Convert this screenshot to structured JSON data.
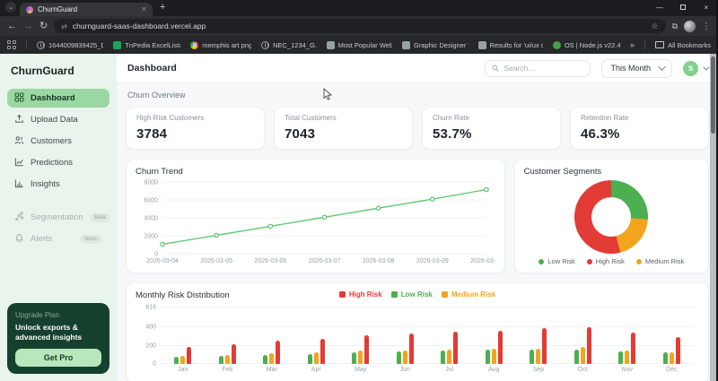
{
  "browser": {
    "tab_title": "ChurnGuard",
    "url": "churnguard-saas-dashboard.vercel.app",
    "bookmarks": [
      {
        "label": "1644009839425_Do...",
        "icon": "globe"
      },
      {
        "label": "TnPedia ExcelLista -...",
        "icon": "sheet"
      },
      {
        "label": "memphis art png -...",
        "icon": "chrome"
      },
      {
        "label": "NEC_1234_G.pdf",
        "icon": "globe"
      },
      {
        "label": "Most Popular Websi...",
        "icon": "page"
      },
      {
        "label": "Graphic Designer W...",
        "icon": "page"
      },
      {
        "label": "Results for 'ui/ux de...",
        "icon": "page"
      },
      {
        "label": "OS | Node.js v22.4.1...",
        "icon": "node"
      }
    ],
    "all_bookmarks_label": "All Bookmarks"
  },
  "sidebar": {
    "brand": "ChurnGuard",
    "items": [
      {
        "label": "Dashboard",
        "icon": "grid",
        "active": true
      },
      {
        "label": "Upload Data",
        "icon": "upload",
        "active": false
      },
      {
        "label": "Customers",
        "icon": "users",
        "active": false
      },
      {
        "label": "Predictions",
        "icon": "trend",
        "active": false
      },
      {
        "label": "Insights",
        "icon": "bars",
        "active": false
      }
    ],
    "secondary_items": [
      {
        "label": "Segmentation",
        "icon": "scatter",
        "badge": "Beta"
      },
      {
        "label": "Alerts",
        "icon": "bell",
        "badge": "Soon"
      }
    ],
    "upgrade": {
      "title": "Upgrade Plan",
      "description": "Unlock exports & advanced insights",
      "cta": "Get Pro"
    }
  },
  "topbar": {
    "title": "Dashboard",
    "search_placeholder": "Search...",
    "period_selector": "This Month",
    "avatar_initial": "S"
  },
  "overview": {
    "section_title": "Churn Overview",
    "cards": [
      {
        "label": "High Risk Customers",
        "value": "3784"
      },
      {
        "label": "Total Customers",
        "value": "7043"
      },
      {
        "label": "Churn Rate",
        "value": "53.7%"
      },
      {
        "label": "Retention Rate",
        "value": "46.3%"
      }
    ]
  },
  "colors": {
    "accent_green": "#2f7d4f",
    "sidebar_active_bg": "#9bd7a3",
    "upgrade_card_bg": "#16402e",
    "high_risk": "#e33b36",
    "low_risk": "#4caf50",
    "medium_risk": "#f2a41f",
    "line_green": "#5cc46a"
  },
  "chart_data": [
    {
      "type": "line",
      "title": "Churn Trend",
      "x": [
        "2026-03-04",
        "2026-03-05",
        "2026-03-06",
        "2026-03-07",
        "2026-03-08",
        "2026-03-09",
        "2026-03-10"
      ],
      "series": [
        {
          "name": "Churn",
          "values": [
            1050,
            2050,
            3060,
            4070,
            5080,
            6090,
            7150
          ]
        }
      ],
      "ylim": [
        0,
        8000
      ],
      "yticks": [
        0,
        2000,
        4000,
        6000,
        8000
      ],
      "color": "#5cc46a",
      "grid": true
    },
    {
      "type": "pie",
      "title": "Customer Segments",
      "donut": true,
      "segments": [
        {
          "label": "Low Risk",
          "value": 26,
          "color": "#4caf50"
        },
        {
          "label": "Medium Risk",
          "value": 20,
          "color": "#f2a41f"
        },
        {
          "label": "High Risk",
          "value": 54,
          "color": "#e33b36"
        }
      ],
      "legend_order": [
        "Low Risk",
        "High Risk",
        "Medium Risk"
      ],
      "legend_position": "bottom"
    },
    {
      "type": "bar",
      "title": "Monthly Risk Distribution",
      "categories": [
        "Jan",
        "Feb",
        "Mar",
        "Apr",
        "May",
        "Jun",
        "Jul",
        "Aug",
        "Sep",
        "Oct",
        "Nov",
        "Dec"
      ],
      "series": [
        {
          "name": "High Risk",
          "color": "#e33b36",
          "values": [
            190,
            215,
            250,
            275,
            310,
            335,
            350,
            365,
            390,
            400,
            340,
            295
          ]
        },
        {
          "name": "Low Risk",
          "color": "#4caf50",
          "values": [
            80,
            90,
            100,
            110,
            125,
            140,
            145,
            155,
            160,
            160,
            140,
            125
          ]
        },
        {
          "name": "Medium Risk",
          "color": "#f2a41f",
          "values": [
            85,
            95,
            115,
            130,
            145,
            150,
            155,
            170,
            170,
            185,
            150,
            125
          ]
        }
      ],
      "bar_order": [
        "Low Risk",
        "Medium Risk",
        "High Risk"
      ],
      "ylim": [
        0,
        616
      ],
      "yticks": [
        0,
        200,
        400,
        616
      ],
      "legend_position": "top"
    }
  ]
}
